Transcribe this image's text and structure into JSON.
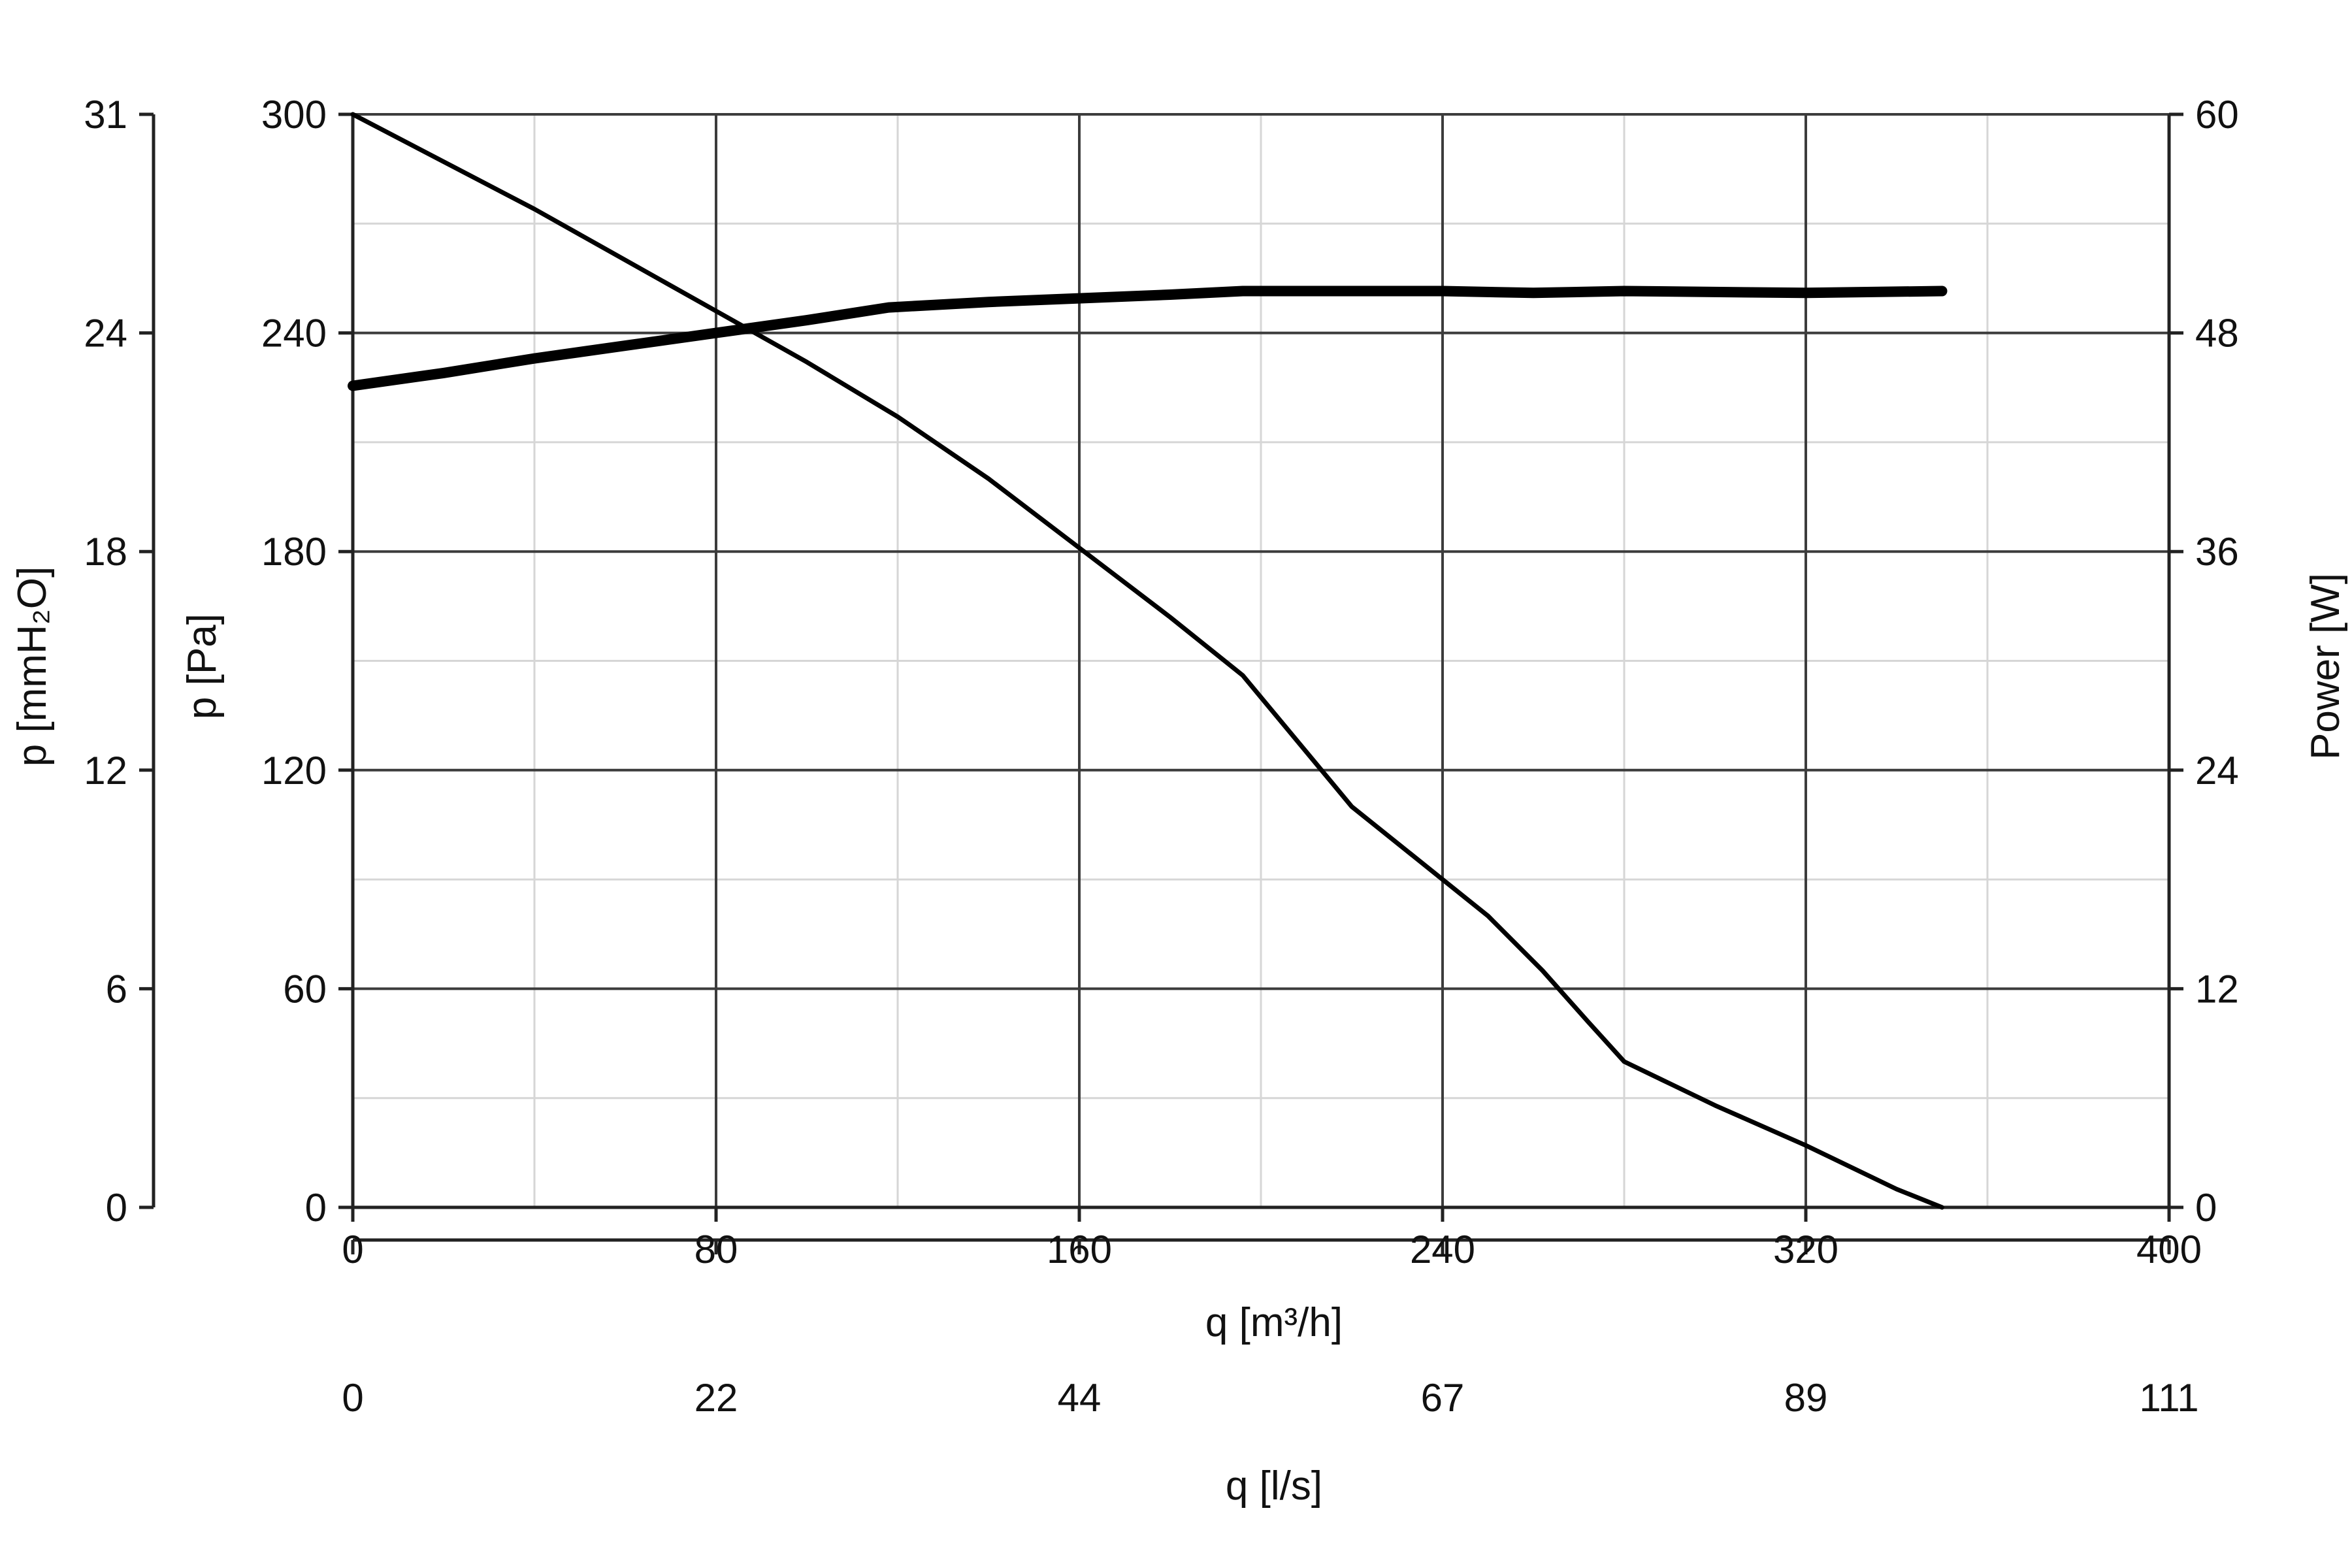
{
  "chart_data": {
    "type": "line",
    "x_axis_primary": {
      "label": "q [m³/h]",
      "ticks": [
        0,
        80,
        160,
        240,
        320,
        400
      ],
      "range": [
        0,
        400
      ],
      "minor_step": 40
    },
    "x_axis_secondary": {
      "label": "q [l/s]",
      "tick_labels": [
        "0",
        "22",
        "44",
        "67",
        "89",
        "111"
      ]
    },
    "y_axis_primary": {
      "label": "p [Pa]",
      "ticks": [
        0,
        60,
        120,
        180,
        240,
        300
      ],
      "range": [
        0,
        300
      ],
      "minor_step": 30
    },
    "y_axis_secondary": {
      "label": "p [mmH₂O]",
      "tick_labels": [
        "0",
        "6",
        "12",
        "18",
        "24",
        "31"
      ]
    },
    "y_axis_right": {
      "label": "Power [W]",
      "ticks": [
        0,
        12,
        24,
        36,
        48,
        60
      ],
      "range": [
        0,
        60
      ]
    },
    "grid": true,
    "series": [
      {
        "axis": "left",
        "line_width": 7,
        "points": [
          [
            0,
            300
          ],
          [
            40,
            274
          ],
          [
            80,
            246
          ],
          [
            100,
            232
          ],
          [
            120,
            217
          ],
          [
            140,
            200
          ],
          [
            160,
            181
          ],
          [
            180,
            162
          ],
          [
            196,
            146
          ],
          [
            210,
            125
          ],
          [
            220,
            110
          ],
          [
            240,
            90
          ],
          [
            250,
            80
          ],
          [
            262,
            65
          ],
          [
            272,
            51
          ],
          [
            280,
            40
          ],
          [
            290,
            34
          ],
          [
            300,
            28
          ],
          [
            320,
            17
          ],
          [
            340,
            5
          ],
          [
            350,
            0
          ]
        ]
      },
      {
        "axis": "right",
        "line_width": 16,
        "points": [
          [
            0,
            45.1
          ],
          [
            20,
            45.8
          ],
          [
            40,
            46.6
          ],
          [
            60,
            47.3
          ],
          [
            80,
            48.0
          ],
          [
            100,
            48.7
          ],
          [
            118,
            49.4
          ],
          [
            140,
            49.7
          ],
          [
            160,
            49.9
          ],
          [
            180,
            50.1
          ],
          [
            196,
            50.3
          ],
          [
            240,
            50.3
          ],
          [
            260,
            50.2
          ],
          [
            280,
            50.3
          ],
          [
            320,
            50.2
          ],
          [
            350,
            50.3
          ]
        ]
      }
    ]
  }
}
